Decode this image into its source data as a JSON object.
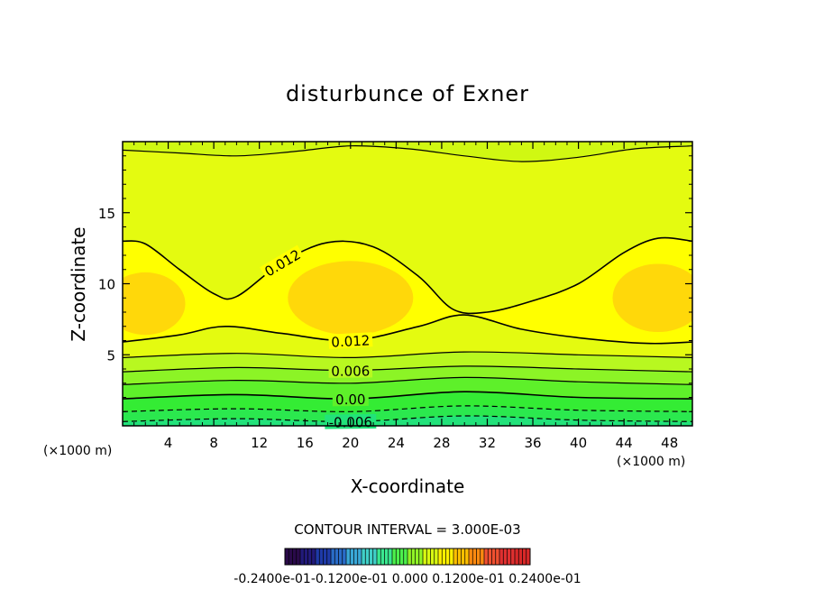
{
  "chart_data": {
    "type": "heatmap",
    "title": "disturbunce of Exner",
    "xlabel": "X-coordinate",
    "ylabel": "Z-coordinate",
    "x_unit": "(×1000 m)",
    "y_unit": "(×1000 m)",
    "xlim": [
      0,
      50
    ],
    "ylim": [
      0,
      20
    ],
    "x_ticks": [
      4,
      8,
      12,
      16,
      20,
      24,
      28,
      32,
      36,
      40,
      44,
      48
    ],
    "y_ticks": [
      5,
      10,
      15
    ],
    "grid": false,
    "contour_interval_text": "CONTOUR INTERVAL = 3.000E-03",
    "contour_lines": [
      {
        "level": -0.006,
        "label": "-0.006",
        "dashed": true,
        "label_x": 20,
        "x": [
          0,
          10,
          20,
          30,
          40,
          50
        ],
        "y": [
          0.3,
          0.5,
          0.3,
          0.7,
          0.4,
          0.3
        ]
      },
      {
        "level": -0.003,
        "label": "",
        "dashed": true,
        "x": [
          0,
          10,
          20,
          30,
          40,
          50
        ],
        "y": [
          1.0,
          1.2,
          1.0,
          1.4,
          1.1,
          1.0
        ]
      },
      {
        "level": 0.0,
        "label": "0.00",
        "dashed": false,
        "label_x": 20,
        "x": [
          0,
          10,
          20,
          30,
          40,
          50
        ],
        "y": [
          1.9,
          2.2,
          1.9,
          2.4,
          2.0,
          1.9
        ]
      },
      {
        "level": 0.003,
        "label": "",
        "dashed": false,
        "x": [
          0,
          10,
          20,
          30,
          40,
          50
        ],
        "y": [
          2.9,
          3.2,
          3.0,
          3.4,
          3.1,
          2.9
        ]
      },
      {
        "level": 0.006,
        "label": "0.006",
        "dashed": false,
        "label_x": 20,
        "x": [
          0,
          10,
          20,
          30,
          40,
          50
        ],
        "y": [
          3.8,
          4.1,
          3.9,
          4.2,
          4.0,
          3.8
        ]
      },
      {
        "level": 0.009,
        "label": "",
        "dashed": false,
        "x": [
          0,
          10,
          20,
          30,
          40,
          50
        ],
        "y": [
          4.8,
          5.1,
          4.8,
          5.2,
          5.0,
          4.8
        ]
      },
      {
        "level": 0.012,
        "label": "0.012",
        "dashed": false,
        "label_x": 20,
        "x": [
          0,
          5,
          9,
          14,
          20,
          26,
          30,
          35,
          40,
          46,
          50
        ],
        "y": [
          5.9,
          6.4,
          7.0,
          6.5,
          6.0,
          7.0,
          7.8,
          6.8,
          6.2,
          5.8,
          5.9
        ]
      },
      {
        "level": 0.012,
        "label": "0.012",
        "dashed": false,
        "label_x": 14,
        "x": [
          0,
          2,
          5,
          8,
          10,
          14,
          18,
          22,
          26,
          29,
          32,
          36,
          40,
          44,
          47,
          50
        ],
        "y": [
          13.0,
          12.8,
          11.0,
          9.3,
          9.1,
          11.5,
          12.9,
          12.6,
          10.5,
          8.2,
          8.0,
          8.8,
          10.0,
          12.2,
          13.2,
          13.0
        ]
      },
      {
        "level": 0.009,
        "label": "",
        "dashed": false,
        "x": [
          0,
          5,
          10,
          15,
          20,
          25,
          30,
          35,
          40,
          45,
          50
        ],
        "y": [
          19.4,
          19.2,
          19.0,
          19.3,
          19.7,
          19.5,
          19.0,
          18.6,
          18.9,
          19.5,
          19.7
        ]
      }
    ],
    "fill_bands": [
      {
        "from": "bottom",
        "to": -0.006,
        "color": "#22e27a"
      },
      {
        "from": -0.006,
        "to": -0.003,
        "color": "#2be84e"
      },
      {
        "from": -0.003,
        "to": 0.0,
        "color": "#34ec34"
      },
      {
        "from": 0.0,
        "to": 0.003,
        "color": "#5ef02a"
      },
      {
        "from": 0.003,
        "to": 0.006,
        "color": "#8cf426"
      },
      {
        "from": 0.006,
        "to": 0.009,
        "color": "#b8f820"
      },
      {
        "from": 0.009,
        "to": 0.012,
        "color": "#e4fb10"
      },
      {
        "from": 0.012,
        "to": "core",
        "color": "#ffff00"
      },
      {
        "core": "max",
        "color": "#ffd80a"
      }
    ],
    "colorbar": {
      "tick_labels": [
        "-0.2400e-01",
        "-0.1200e-01",
        "0.000",
        "0.1200e-01",
        "0.2400e-01"
      ],
      "caption": "-0.2400e-01-0.1200e-01 0.000 0.1200e-01 0.2400e-01",
      "colors": [
        "#2a0a4a",
        "#221a7a",
        "#1e3aa8",
        "#2a6cc8",
        "#3aa8d8",
        "#40d0c8",
        "#3ae890",
        "#4cf04c",
        "#90f426",
        "#d8f812",
        "#fff000",
        "#ffc000",
        "#ff8a10",
        "#f05030",
        "#e03030",
        "#d82828"
      ]
    }
  }
}
